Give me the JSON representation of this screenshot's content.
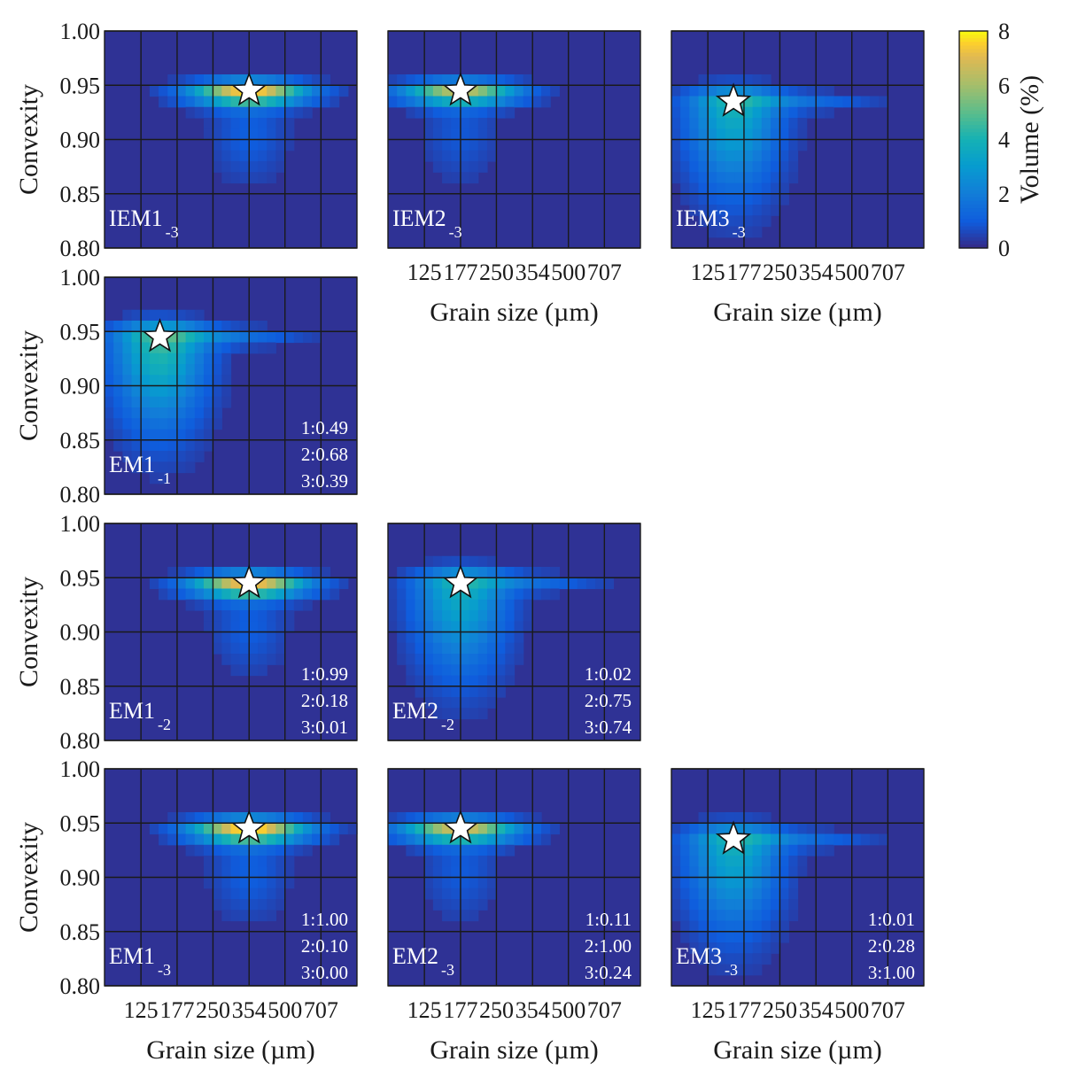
{
  "figure": {
    "xlabel": "Grain size (µm)",
    "ylabel": "Convexity",
    "colorbar": {
      "label": "Volume (%)",
      "ticks": [
        "0",
        "2",
        "4",
        "6",
        "8"
      ],
      "range": [
        0,
        8
      ],
      "colormap": "parula"
    }
  },
  "chart_data": {
    "type": "heatmap",
    "x_ticks": [
      "125",
      "177",
      "250",
      "354",
      "500",
      "707"
    ],
    "y_ticks": [
      "1.00",
      "0.95",
      "0.90",
      "0.85",
      "0.80"
    ],
    "xlim": [
      88,
      1000
    ],
    "ylim": [
      0.8,
      1.0
    ],
    "x_scale": "log",
    "colors": {
      "low": "#352a87",
      "mid": "#0fa5d4",
      "high": "#f9fb0e",
      "grid": "#1a1a1a",
      "star": "#ffffff"
    },
    "panels": [
      {
        "label": "IEM1",
        "sub": "-3",
        "peak": {
          "grain_size": 354,
          "convexity": 0.945
        },
        "max_volume": 7.2,
        "correlations": []
      },
      {
        "label": "IEM2",
        "sub": "-3",
        "peak": {
          "grain_size": 177,
          "convexity": 0.945
        },
        "max_volume": 6.0,
        "correlations": []
      },
      {
        "label": "IEM3",
        "sub": "-3",
        "peak": {
          "grain_size": 160,
          "convexity": 0.935
        },
        "max_volume": 3.6,
        "correlations": []
      },
      {
        "label": "EM1",
        "sub": "-1",
        "peak": {
          "grain_size": 150,
          "convexity": 0.945
        },
        "max_volume": 4.2,
        "correlations": [
          "1:0.49",
          "2:0.68",
          "3:0.39"
        ]
      },
      {
        "label": "EM1",
        "sub": "-2",
        "peak": {
          "grain_size": 354,
          "convexity": 0.945
        },
        "max_volume": 7.0,
        "correlations": [
          "1:0.99",
          "2:0.18",
          "3:0.01"
        ]
      },
      {
        "label": "EM2",
        "sub": "-2",
        "peak": {
          "grain_size": 177,
          "convexity": 0.945
        },
        "max_volume": 3.5,
        "correlations": [
          "1:0.02",
          "2:0.75",
          "3:0.74"
        ]
      },
      {
        "label": "EM1",
        "sub": "-3",
        "peak": {
          "grain_size": 354,
          "convexity": 0.945
        },
        "max_volume": 7.4,
        "correlations": [
          "1:1.00",
          "2:0.10",
          "3:0.00"
        ]
      },
      {
        "label": "EM2",
        "sub": "-3",
        "peak": {
          "grain_size": 177,
          "convexity": 0.945
        },
        "max_volume": 6.4,
        "correlations": [
          "1:0.11",
          "2:1.00",
          "3:0.24"
        ]
      },
      {
        "label": "EM3",
        "sub": "-3",
        "peak": {
          "grain_size": 160,
          "convexity": 0.935
        },
        "max_volume": 3.5,
        "correlations": [
          "1:0.01",
          "2:0.28",
          "3:1.00"
        ]
      }
    ]
  }
}
